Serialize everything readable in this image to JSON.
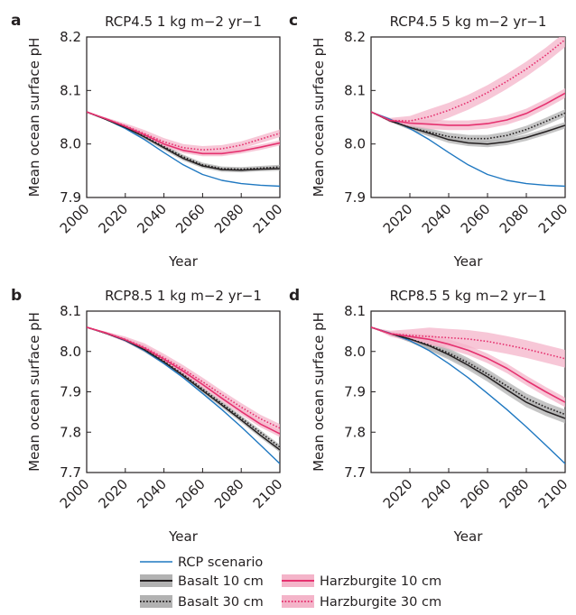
{
  "chart_data": [
    {
      "panel": "a",
      "type": "line",
      "title": "RCP4.5 1 kg m−2 yr−1",
      "xlabel": "Year",
      "ylabel": "Mean ocean surface pH",
      "xlim": [
        2000,
        2100
      ],
      "ylim": [
        7.9,
        8.2
      ],
      "xticks": [
        "2000",
        "2020",
        "2040",
        "2060",
        "2080",
        "2100"
      ],
      "yticks": [
        "7.9",
        "8.0",
        "8.1",
        "8.2"
      ],
      "x": [
        2000,
        2010,
        2020,
        2030,
        2040,
        2050,
        2060,
        2070,
        2080,
        2090,
        2100
      ],
      "series": [
        {
          "name": "RCP scenario",
          "values": [
            8.06,
            8.046,
            8.029,
            8.008,
            7.984,
            7.961,
            7.943,
            7.932,
            7.926,
            7.923,
            7.921
          ]
        },
        {
          "name": "Basalt 10 cm",
          "values": [
            8.06,
            8.046,
            8.031,
            8.013,
            7.993,
            7.973,
            7.959,
            7.952,
            7.951,
            7.953,
            7.954
          ],
          "band": 0.004
        },
        {
          "name": "Basalt 30 cm",
          "values": [
            8.06,
            8.046,
            8.031,
            8.014,
            7.995,
            7.976,
            7.961,
            7.954,
            7.953,
            7.955,
            7.957
          ],
          "band": 0.004
        },
        {
          "name": "Harzburgite 10 cm",
          "values": [
            8.06,
            8.047,
            8.033,
            8.017,
            8.0,
            7.988,
            7.982,
            7.982,
            7.987,
            7.994,
            8.002
          ],
          "band": 0.005
        },
        {
          "name": "Harzburgite 30 cm",
          "values": [
            8.06,
            8.047,
            8.034,
            8.019,
            8.004,
            7.993,
            7.989,
            7.991,
            7.998,
            8.009,
            8.02
          ],
          "band": 0.007
        }
      ]
    },
    {
      "panel": "c",
      "type": "line",
      "title": "RCP4.5 5 kg m−2 yr−1",
      "xlabel": "Year",
      "ylabel": "Mean ocean surface pH",
      "xlim": [
        2000,
        2100
      ],
      "ylim": [
        7.9,
        8.2
      ],
      "xticks": [
        "2020",
        "2040",
        "2060",
        "2080",
        "2100"
      ],
      "yticks": [
        "7.9",
        "8.0",
        "8.1",
        "8.2"
      ],
      "x": [
        2000,
        2010,
        2020,
        2030,
        2040,
        2050,
        2060,
        2070,
        2080,
        2090,
        2100
      ],
      "series": [
        {
          "name": "RCP scenario",
          "values": [
            8.06,
            8.046,
            8.029,
            8.008,
            7.984,
            7.961,
            7.943,
            7.932,
            7.926,
            7.923,
            7.921
          ]
        },
        {
          "name": "Basalt 10 cm",
          "values": [
            8.06,
            8.043,
            8.031,
            8.02,
            8.008,
            8.002,
            8.0,
            8.004,
            8.012,
            8.023,
            8.035
          ],
          "band": 0.006
        },
        {
          "name": "Basalt 30 cm",
          "values": [
            8.06,
            8.043,
            8.031,
            8.022,
            8.014,
            8.01,
            8.01,
            8.016,
            8.027,
            8.042,
            8.058
          ],
          "band": 0.007
        },
        {
          "name": "Harzburgite 10 cm",
          "values": [
            8.06,
            8.044,
            8.039,
            8.037,
            8.035,
            8.035,
            8.038,
            8.045,
            8.057,
            8.075,
            8.095
          ],
          "band": 0.009
        },
        {
          "name": "Harzburgite 30 cm",
          "values": [
            8.06,
            8.044,
            8.043,
            8.051,
            8.063,
            8.078,
            8.096,
            8.117,
            8.14,
            8.166,
            8.195
          ],
          "band": 0.014
        }
      ]
    },
    {
      "panel": "b",
      "type": "line",
      "title": "RCP8.5 1 kg m−2 yr−1",
      "xlabel": "Year",
      "ylabel": "Mean ocean surface pH",
      "xlim": [
        2000,
        2100
      ],
      "ylim": [
        7.7,
        8.1
      ],
      "xticks": [
        "2000",
        "2020",
        "2040",
        "2060",
        "2080",
        "2100"
      ],
      "yticks": [
        "7.7",
        "7.8",
        "7.9",
        "8.0",
        "8.1"
      ],
      "x": [
        2000,
        2010,
        2020,
        2030,
        2040,
        2050,
        2060,
        2070,
        2080,
        2090,
        2100
      ],
      "series": [
        {
          "name": "RCP scenario",
          "values": [
            8.06,
            8.045,
            8.027,
            8.002,
            7.97,
            7.935,
            7.896,
            7.856,
            7.813,
            7.768,
            7.722
          ]
        },
        {
          "name": "Basalt 10 cm",
          "values": [
            8.06,
            8.045,
            8.028,
            8.004,
            7.974,
            7.94,
            7.903,
            7.867,
            7.83,
            7.792,
            7.756
          ],
          "band": 0.006
        },
        {
          "name": "Basalt 30 cm",
          "values": [
            8.06,
            8.045,
            8.028,
            8.005,
            7.976,
            7.943,
            7.907,
            7.871,
            7.835,
            7.799,
            7.763
          ],
          "band": 0.006
        },
        {
          "name": "Harzburgite 10 cm",
          "values": [
            8.06,
            8.046,
            8.029,
            8.008,
            7.981,
            7.951,
            7.918,
            7.884,
            7.851,
            7.82,
            7.796
          ],
          "band": 0.008
        },
        {
          "name": "Harzburgite 30 cm",
          "values": [
            8.06,
            8.046,
            8.03,
            8.01,
            7.984,
            7.956,
            7.925,
            7.893,
            7.862,
            7.833,
            7.81
          ],
          "band": 0.01
        }
      ]
    },
    {
      "panel": "d",
      "type": "line",
      "title": "RCP8.5 5 kg m−2 yr−1",
      "xlabel": "Year",
      "ylabel": "Mean ocean surface pH",
      "xlim": [
        2000,
        2100
      ],
      "ylim": [
        7.7,
        8.1
      ],
      "xticks": [
        "2020",
        "2040",
        "2060",
        "2080",
        "2100"
      ],
      "yticks": [
        "7.7",
        "7.8",
        "7.9",
        "8.0",
        "8.1"
      ],
      "x": [
        2000,
        2010,
        2020,
        2030,
        2040,
        2050,
        2060,
        2070,
        2080,
        2090,
        2100
      ],
      "series": [
        {
          "name": "RCP scenario",
          "values": [
            8.06,
            8.045,
            8.027,
            8.002,
            7.97,
            7.935,
            7.896,
            7.856,
            7.813,
            7.768,
            7.722
          ]
        },
        {
          "name": "Basalt 10 cm",
          "values": [
            8.06,
            8.044,
            8.031,
            8.014,
            7.992,
            7.966,
            7.937,
            7.905,
            7.874,
            7.852,
            7.834
          ],
          "band": 0.012
        },
        {
          "name": "Basalt 30 cm",
          "values": [
            8.06,
            8.044,
            8.031,
            8.016,
            7.996,
            7.972,
            7.944,
            7.914,
            7.884,
            7.862,
            7.844
          ],
          "band": 0.012
        },
        {
          "name": "Harzburgite 10 cm",
          "values": [
            8.06,
            8.044,
            8.037,
            8.03,
            8.018,
            8.003,
            7.983,
            7.958,
            7.928,
            7.9,
            7.874
          ],
          "band": 0.012
        },
        {
          "name": "Harzburgite 30 cm",
          "values": [
            8.06,
            8.044,
            8.04,
            8.037,
            8.034,
            8.031,
            8.025,
            8.016,
            8.006,
            7.994,
            7.982
          ],
          "band": 0.022
        }
      ]
    }
  ],
  "legend": {
    "items": [
      {
        "key": "rcp",
        "label": "RCP scenario"
      },
      {
        "key": "basalt10",
        "label": "Basalt 10 cm"
      },
      {
        "key": "basalt30",
        "label": "Basalt 30 cm"
      },
      {
        "key": "harz10",
        "label": "Harzburgite 10 cm"
      },
      {
        "key": "harz30",
        "label": "Harzburgite 30 cm"
      }
    ]
  },
  "colors": {
    "rcp": "#1f78c1",
    "basalt": "#231f20",
    "basalt_band": "#b2b2b2",
    "harzburgite": "#e5316f",
    "harzburgite_band": "#f4b4c9",
    "axes": "#231f20"
  }
}
